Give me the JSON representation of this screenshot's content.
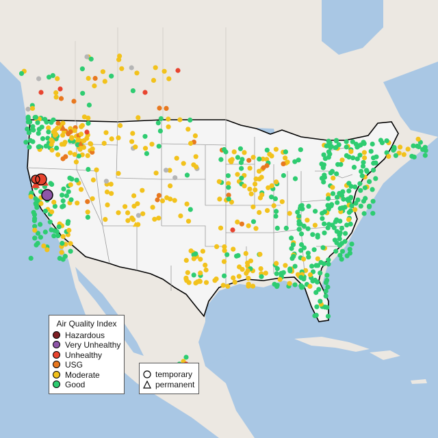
{
  "colors": {
    "ocean": "#a9c7e4",
    "land": "#efe9e4",
    "land_us": "#f5f5f5",
    "land_outer": "#ece8e2",
    "border": "#000000",
    "state_lines": "#9a9a9a",
    "hazardous": "#7e1f24",
    "very_unhealthy": "#8e56a8",
    "unhealthy": "#e8442f",
    "usg": "#e8781f",
    "moderate": "#f2c21c",
    "good": "#2ecc71",
    "unknown": "#b5b5b5"
  },
  "legend_aqi": {
    "title": "Air Quality Index",
    "items": [
      {
        "label": "Hazardous",
        "color": "#7e1f24"
      },
      {
        "label": "Very Unhealthy",
        "color": "#8e56a8"
      },
      {
        "label": "Unhealthy",
        "color": "#e8442f"
      },
      {
        "label": "USG",
        "color": "#e8781f"
      },
      {
        "label": "Moderate",
        "color": "#f2c21c"
      },
      {
        "label": "Good",
        "color": "#2ecc71"
      }
    ]
  },
  "legend_type": {
    "items": [
      {
        "label": "temporary",
        "shape": "circle-icon"
      },
      {
        "label": "permanent",
        "shape": "triangle-icon"
      }
    ]
  }
}
